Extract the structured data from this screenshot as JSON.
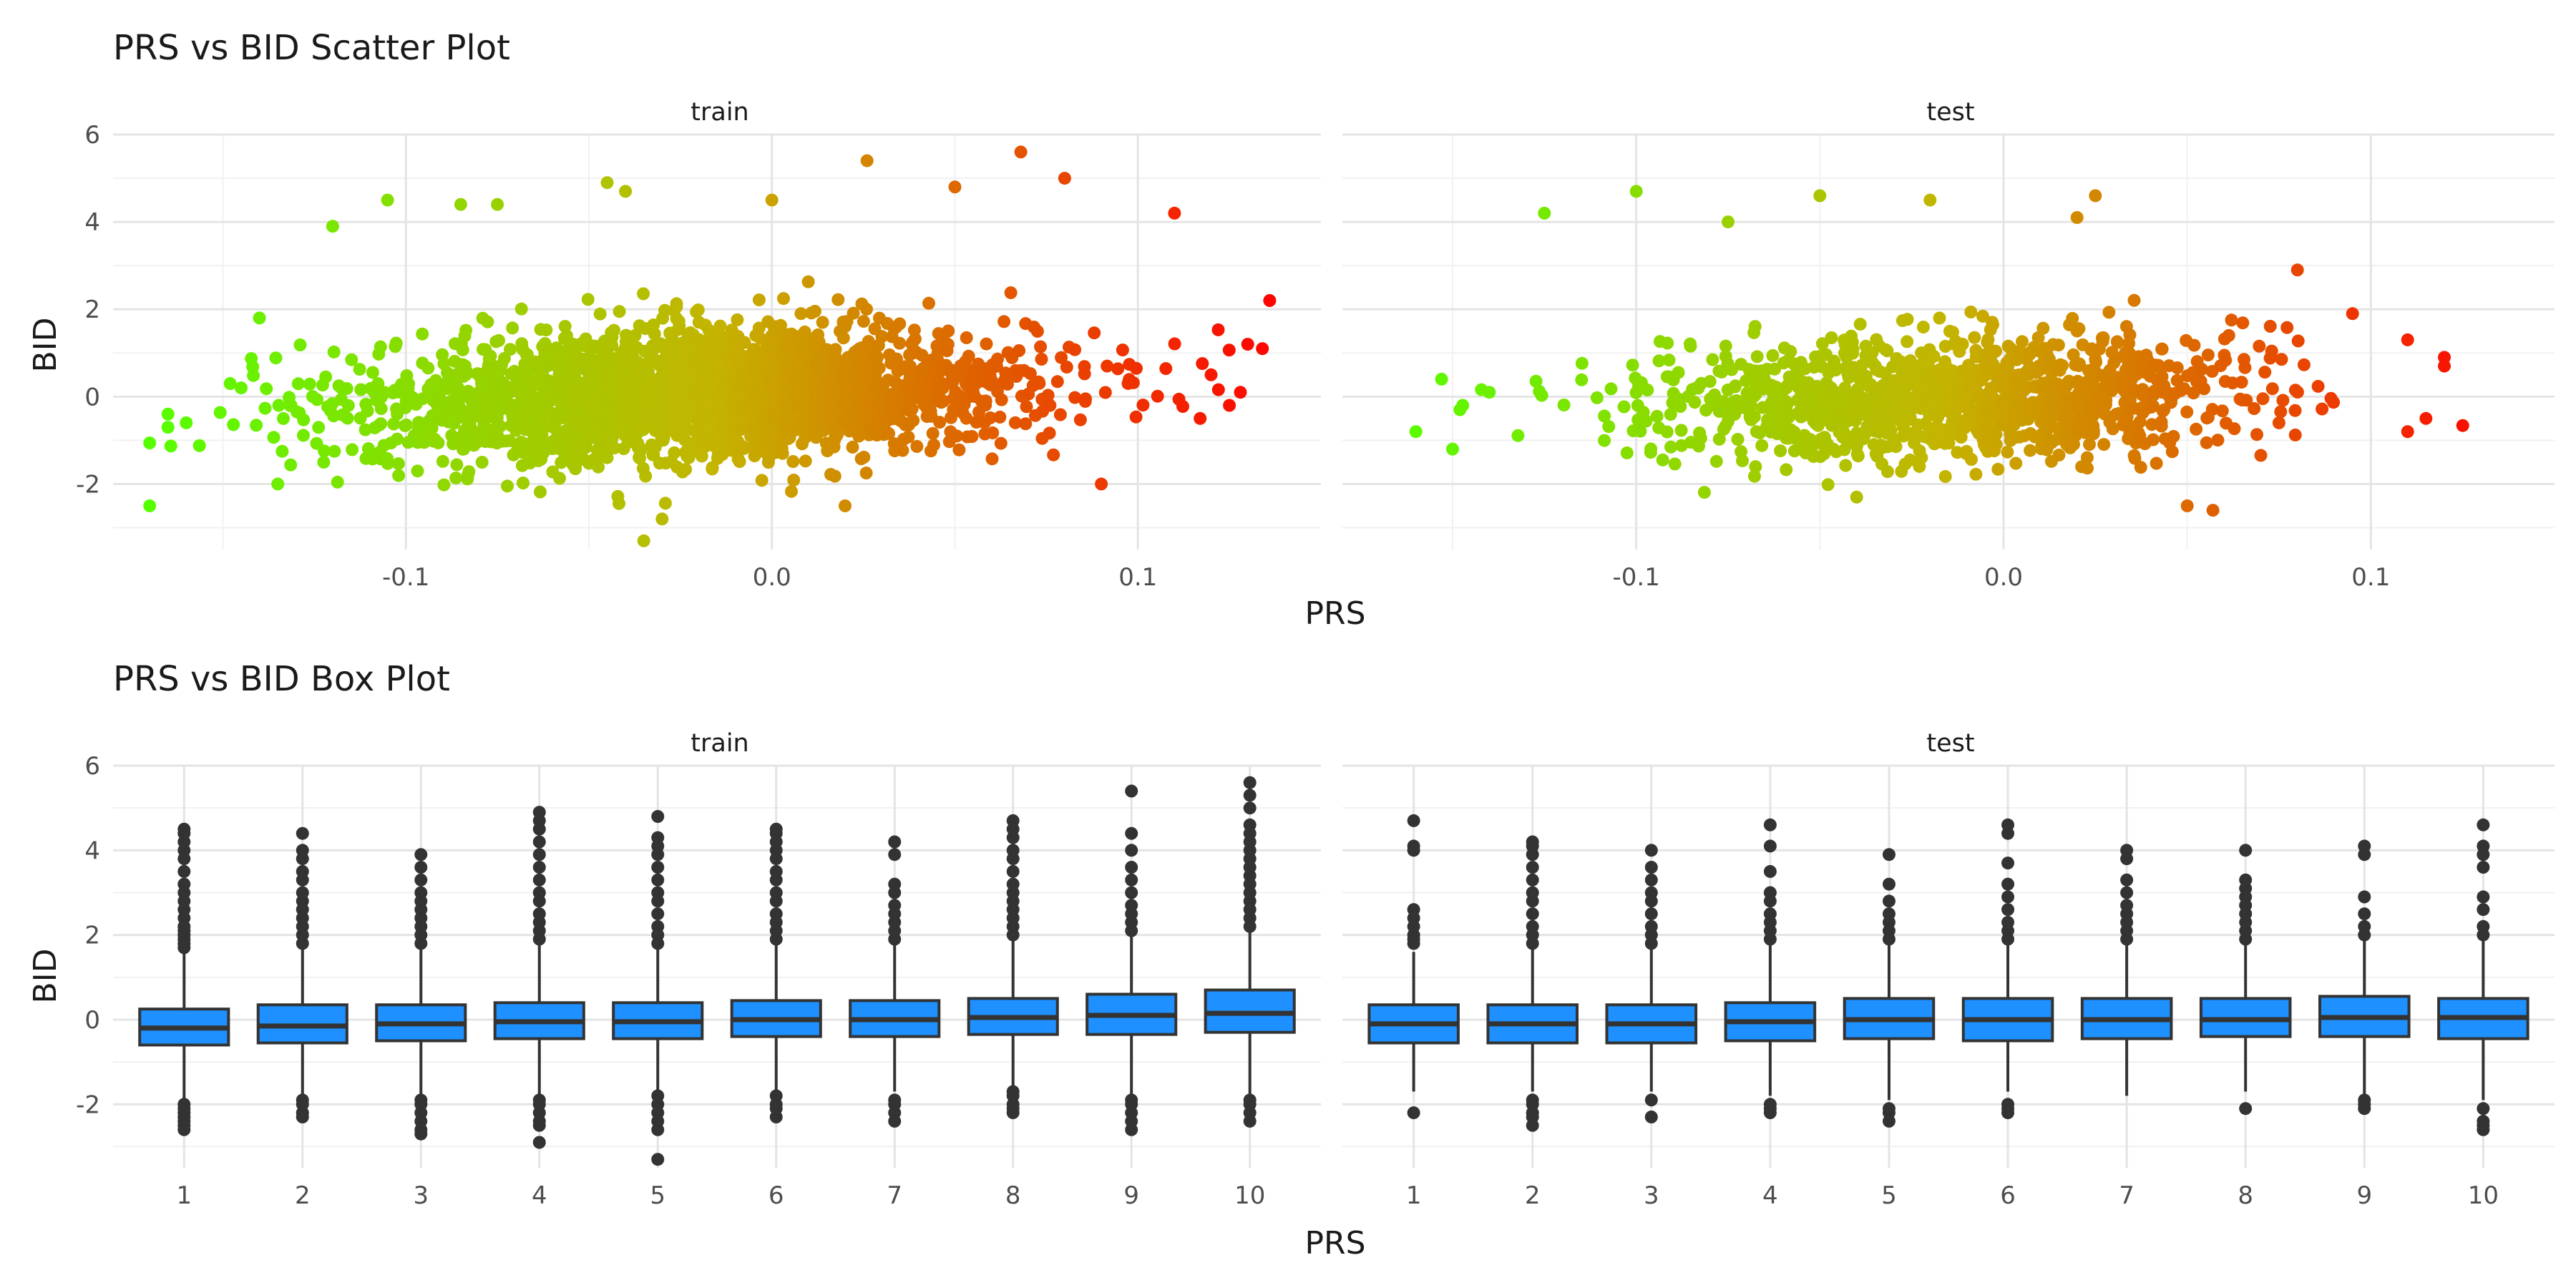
{
  "chart_data": [
    {
      "type": "scatter",
      "title": "PRS vs BID Scatter Plot",
      "xlabel": "PRS",
      "ylabel": "BID",
      "grid": true,
      "color_scale": {
        "low": "#55ff00",
        "mid": "#c4b400",
        "high": "#ff0000",
        "domain": [
          -0.17,
          0.14
        ]
      },
      "panels": [
        {
          "name": "train",
          "xlim": [
            -0.18,
            0.15
          ],
          "ylim": [
            -3.5,
            6.0
          ],
          "xticks": [
            -0.1,
            0.0,
            0.1
          ],
          "xtick_labels": [
            "-0.1",
            "0.0",
            "0.1"
          ],
          "yticks": [
            -2,
            0,
            2,
            4,
            6
          ],
          "ytick_labels": [
            "-2",
            "0",
            "2",
            "4",
            "6"
          ],
          "cloud": {
            "n": 2400,
            "x_mean": -0.02,
            "x_sd": 0.045,
            "x_range": [
              -0.17,
              0.14
            ],
            "y_mean": 0.05,
            "y_sd": 0.75,
            "slope": 3.0
          },
          "outliers": [
            [
              -0.165,
              -0.4
            ],
            [
              -0.165,
              -0.7
            ],
            [
              -0.16,
              -0.6
            ],
            [
              -0.148,
              0.3
            ],
            [
              -0.145,
              0.2
            ],
            [
              -0.14,
              1.8
            ],
            [
              -0.135,
              -2.0
            ],
            [
              -0.12,
              3.9
            ],
            [
              -0.105,
              4.5
            ],
            [
              -0.085,
              4.4
            ],
            [
              -0.075,
              4.4
            ],
            [
              -0.045,
              4.9
            ],
            [
              -0.04,
              4.7
            ],
            [
              -0.035,
              -3.3
            ],
            [
              -0.03,
              -2.8
            ],
            [
              0.0,
              4.5
            ],
            [
              0.02,
              -2.5
            ],
            [
              0.026,
              5.4
            ],
            [
              0.05,
              4.8
            ],
            [
              0.068,
              5.6
            ],
            [
              0.08,
              5.0
            ],
            [
              0.09,
              -2.0
            ],
            [
              0.11,
              4.2
            ],
            [
              0.12,
              0.5
            ],
            [
              0.125,
              -0.2
            ],
            [
              0.13,
              1.2
            ],
            [
              0.134,
              1.1
            ],
            [
              0.136,
              2.2
            ],
            [
              0.128,
              0.1
            ],
            [
              0.117,
              -0.5
            ]
          ]
        },
        {
          "name": "test",
          "xlim": [
            -0.18,
            0.15
          ],
          "ylim": [
            -3.5,
            6.0
          ],
          "xticks": [
            -0.1,
            0.0,
            0.1
          ],
          "xtick_labels": [
            "-0.1",
            "0.0",
            "0.1"
          ],
          "yticks": [
            -2,
            0,
            2,
            4,
            6
          ],
          "ytick_labels": [
            "-2",
            "0",
            "2",
            "4",
            "6"
          ],
          "cloud": {
            "n": 1200,
            "x_mean": -0.015,
            "x_sd": 0.04,
            "x_range": [
              -0.16,
              0.125
            ],
            "y_mean": 0.0,
            "y_sd": 0.7,
            "slope": 2.0
          },
          "outliers": [
            [
              -0.16,
              -0.8
            ],
            [
              -0.153,
              0.4
            ],
            [
              -0.15,
              -1.2
            ],
            [
              -0.148,
              -0.3
            ],
            [
              -0.14,
              0.1
            ],
            [
              -0.125,
              4.2
            ],
            [
              -0.1,
              4.7
            ],
            [
              -0.075,
              4.0
            ],
            [
              -0.05,
              4.6
            ],
            [
              -0.04,
              -2.3
            ],
            [
              -0.02,
              4.5
            ],
            [
              0.02,
              4.1
            ],
            [
              0.025,
              4.6
            ],
            [
              0.05,
              -2.5
            ],
            [
              0.057,
              -2.6
            ],
            [
              0.08,
              2.9
            ],
            [
              0.095,
              1.9
            ],
            [
              0.11,
              1.3
            ],
            [
              0.11,
              -0.8
            ],
            [
              0.12,
              0.9
            ],
            [
              0.12,
              0.7
            ],
            [
              0.115,
              -0.5
            ]
          ]
        }
      ]
    },
    {
      "type": "box",
      "title": "PRS vs BID Box Plot",
      "xlabel": "PRS",
      "ylabel": "BID",
      "grid": true,
      "box_color": "#1e90ff",
      "panels": [
        {
          "name": "train",
          "categories": [
            "1",
            "2",
            "3",
            "4",
            "5",
            "6",
            "7",
            "8",
            "9",
            "10"
          ],
          "ylim": [
            -3.5,
            6.0
          ],
          "yticks": [
            -2,
            0,
            2,
            4,
            6
          ],
          "ytick_labels": [
            "-2",
            "0",
            "2",
            "4",
            "6"
          ],
          "boxes": [
            {
              "q1": -0.6,
              "median": -0.2,
              "q3": 0.25,
              "whisker_low": -1.9,
              "whisker_high": 1.6,
              "outliers": [
                -2.0,
                -2.1,
                -2.2,
                -2.3,
                -2.4,
                -2.5,
                -2.6,
                1.7,
                1.8,
                1.9,
                2.0,
                2.1,
                2.2,
                2.4,
                2.6,
                2.8,
                3.0,
                3.2,
                3.5,
                3.8,
                4.0,
                4.2,
                4.4,
                4.5
              ]
            },
            {
              "q1": -0.55,
              "median": -0.15,
              "q3": 0.35,
              "whisker_low": -1.8,
              "whisker_high": 1.7,
              "outliers": [
                -1.9,
                -2.0,
                -2.2,
                -2.3,
                1.8,
                2.0,
                2.2,
                2.4,
                2.6,
                2.8,
                3.0,
                3.3,
                3.5,
                3.8,
                4.0,
                4.4
              ]
            },
            {
              "q1": -0.5,
              "median": -0.1,
              "q3": 0.35,
              "whisker_low": -1.8,
              "whisker_high": 1.7,
              "outliers": [
                -1.9,
                -2.0,
                -2.2,
                -2.4,
                -2.6,
                -2.7,
                1.8,
                2.0,
                2.2,
                2.4,
                2.6,
                2.8,
                3.0,
                3.3,
                3.6,
                3.9
              ]
            },
            {
              "q1": -0.45,
              "median": -0.05,
              "q3": 0.4,
              "whisker_low": -1.8,
              "whisker_high": 1.8,
              "outliers": [
                -1.9,
                -2.0,
                -2.2,
                -2.4,
                -2.5,
                -2.9,
                1.9,
                2.1,
                2.3,
                2.5,
                2.8,
                3.0,
                3.3,
                3.6,
                3.9,
                4.2,
                4.5,
                4.7,
                4.9
              ]
            },
            {
              "q1": -0.45,
              "median": -0.05,
              "q3": 0.4,
              "whisker_low": -1.7,
              "whisker_high": 1.7,
              "outliers": [
                -1.8,
                -2.0,
                -2.2,
                -2.4,
                -2.6,
                -3.3,
                1.8,
                2.0,
                2.2,
                2.5,
                2.8,
                3.0,
                3.3,
                3.6,
                3.9,
                4.1,
                4.3,
                4.8
              ]
            },
            {
              "q1": -0.4,
              "median": 0.0,
              "q3": 0.45,
              "whisker_low": -1.7,
              "whisker_high": 1.8,
              "outliers": [
                -1.8,
                -2.0,
                -2.1,
                -2.3,
                1.9,
                2.1,
                2.3,
                2.5,
                2.8,
                3.0,
                3.3,
                3.5,
                3.8,
                4.0,
                4.2,
                4.4,
                4.5
              ]
            },
            {
              "q1": -0.4,
              "median": 0.0,
              "q3": 0.45,
              "whisker_low": -1.7,
              "whisker_high": 1.8,
              "outliers": [
                -1.9,
                -2.0,
                -2.2,
                -2.4,
                1.9,
                2.1,
                2.3,
                2.5,
                2.7,
                3.0,
                3.2,
                3.9,
                4.2
              ]
            },
            {
              "q1": -0.35,
              "median": 0.05,
              "q3": 0.5,
              "whisker_low": -1.6,
              "whisker_high": 1.9,
              "outliers": [
                -1.7,
                -1.8,
                -2.0,
                -2.1,
                -2.2,
                2.0,
                2.2,
                2.4,
                2.6,
                2.8,
                3.0,
                3.2,
                3.5,
                3.8,
                4.0,
                4.3,
                4.5,
                4.7
              ]
            },
            {
              "q1": -0.35,
              "median": 0.1,
              "q3": 0.6,
              "whisker_low": -1.8,
              "whisker_high": 2.0,
              "outliers": [
                -1.9,
                -2.0,
                -2.2,
                -2.4,
                -2.6,
                2.1,
                2.3,
                2.5,
                2.7,
                3.0,
                3.3,
                3.6,
                4.0,
                4.4,
                5.4
              ]
            },
            {
              "q1": -0.3,
              "median": 0.15,
              "q3": 0.7,
              "whisker_low": -1.8,
              "whisker_high": 2.1,
              "outliers": [
                -1.9,
                -2.0,
                -2.2,
                -2.4,
                2.2,
                2.4,
                2.6,
                2.8,
                3.0,
                3.2,
                3.4,
                3.6,
                3.8,
                4.0,
                4.2,
                4.4,
                4.6,
                5.0,
                5.3,
                5.6
              ]
            }
          ]
        },
        {
          "name": "test",
          "categories": [
            "1",
            "2",
            "3",
            "4",
            "5",
            "6",
            "7",
            "8",
            "9",
            "10"
          ],
          "ylim": [
            -3.5,
            6.0
          ],
          "yticks": [
            -2,
            0,
            2,
            4,
            6
          ],
          "ytick_labels": [
            "-2",
            "0",
            "2",
            "4",
            "6"
          ],
          "boxes": [
            {
              "q1": -0.55,
              "median": -0.1,
              "q3": 0.35,
              "whisker_low": -1.7,
              "whisker_high": 1.6,
              "outliers": [
                -2.2,
                1.8,
                1.9,
                2.0,
                2.2,
                2.4,
                2.6,
                4.0,
                4.1,
                4.7
              ]
            },
            {
              "q1": -0.55,
              "median": -0.1,
              "q3": 0.35,
              "whisker_low": -1.7,
              "whisker_high": 1.7,
              "outliers": [
                -1.9,
                -2.0,
                -2.2,
                -2.3,
                -2.5,
                1.8,
                2.0,
                2.2,
                2.5,
                2.8,
                3.0,
                3.3,
                3.6,
                3.9,
                4.1,
                4.2
              ]
            },
            {
              "q1": -0.55,
              "median": -0.1,
              "q3": 0.35,
              "whisker_low": -1.7,
              "whisker_high": 1.7,
              "outliers": [
                -1.9,
                -2.3,
                1.8,
                2.0,
                2.2,
                2.5,
                2.8,
                3.0,
                3.3,
                3.6,
                4.0
              ]
            },
            {
              "q1": -0.5,
              "median": -0.05,
              "q3": 0.4,
              "whisker_low": -1.8,
              "whisker_high": 1.8,
              "outliers": [
                -2.0,
                -2.1,
                -2.2,
                1.9,
                2.1,
                2.3,
                2.5,
                2.8,
                3.0,
                3.5,
                4.1,
                4.6
              ]
            },
            {
              "q1": -0.45,
              "median": 0.0,
              "q3": 0.5,
              "whisker_low": -1.9,
              "whisker_high": 1.8,
              "outliers": [
                -2.1,
                -2.2,
                -2.4,
                1.9,
                2.1,
                2.3,
                2.5,
                2.8,
                3.2,
                3.9
              ]
            },
            {
              "q1": -0.5,
              "median": 0.0,
              "q3": 0.5,
              "whisker_low": -1.7,
              "whisker_high": 1.8,
              "outliers": [
                -2.0,
                -2.1,
                -2.2,
                1.9,
                2.1,
                2.3,
                2.6,
                2.9,
                3.2,
                3.7,
                4.4,
                4.6
              ]
            },
            {
              "q1": -0.45,
              "median": 0.0,
              "q3": 0.5,
              "whisker_low": -1.8,
              "whisker_high": 1.8,
              "outliers": [
                1.9,
                2.1,
                2.3,
                2.5,
                2.7,
                3.0,
                3.3,
                3.8,
                4.0
              ]
            },
            {
              "q1": -0.4,
              "median": 0.0,
              "q3": 0.5,
              "whisker_low": -1.7,
              "whisker_high": 1.8,
              "outliers": [
                -2.1,
                1.9,
                2.1,
                2.3,
                2.5,
                2.7,
                2.9,
                3.1,
                3.3,
                4.0
              ]
            },
            {
              "q1": -0.4,
              "median": 0.05,
              "q3": 0.55,
              "whisker_low": -1.8,
              "whisker_high": 1.9,
              "outliers": [
                -1.9,
                -2.0,
                -2.1,
                2.0,
                2.2,
                2.5,
                2.9,
                3.9,
                4.1
              ]
            },
            {
              "q1": -0.45,
              "median": 0.05,
              "q3": 0.5,
              "whisker_low": -1.9,
              "whisker_high": 1.9,
              "outliers": [
                -2.1,
                -2.4,
                -2.5,
                -2.6,
                2.0,
                2.2,
                2.6,
                2.9,
                3.6,
                3.9,
                4.1,
                4.6
              ]
            }
          ]
        }
      ]
    }
  ]
}
